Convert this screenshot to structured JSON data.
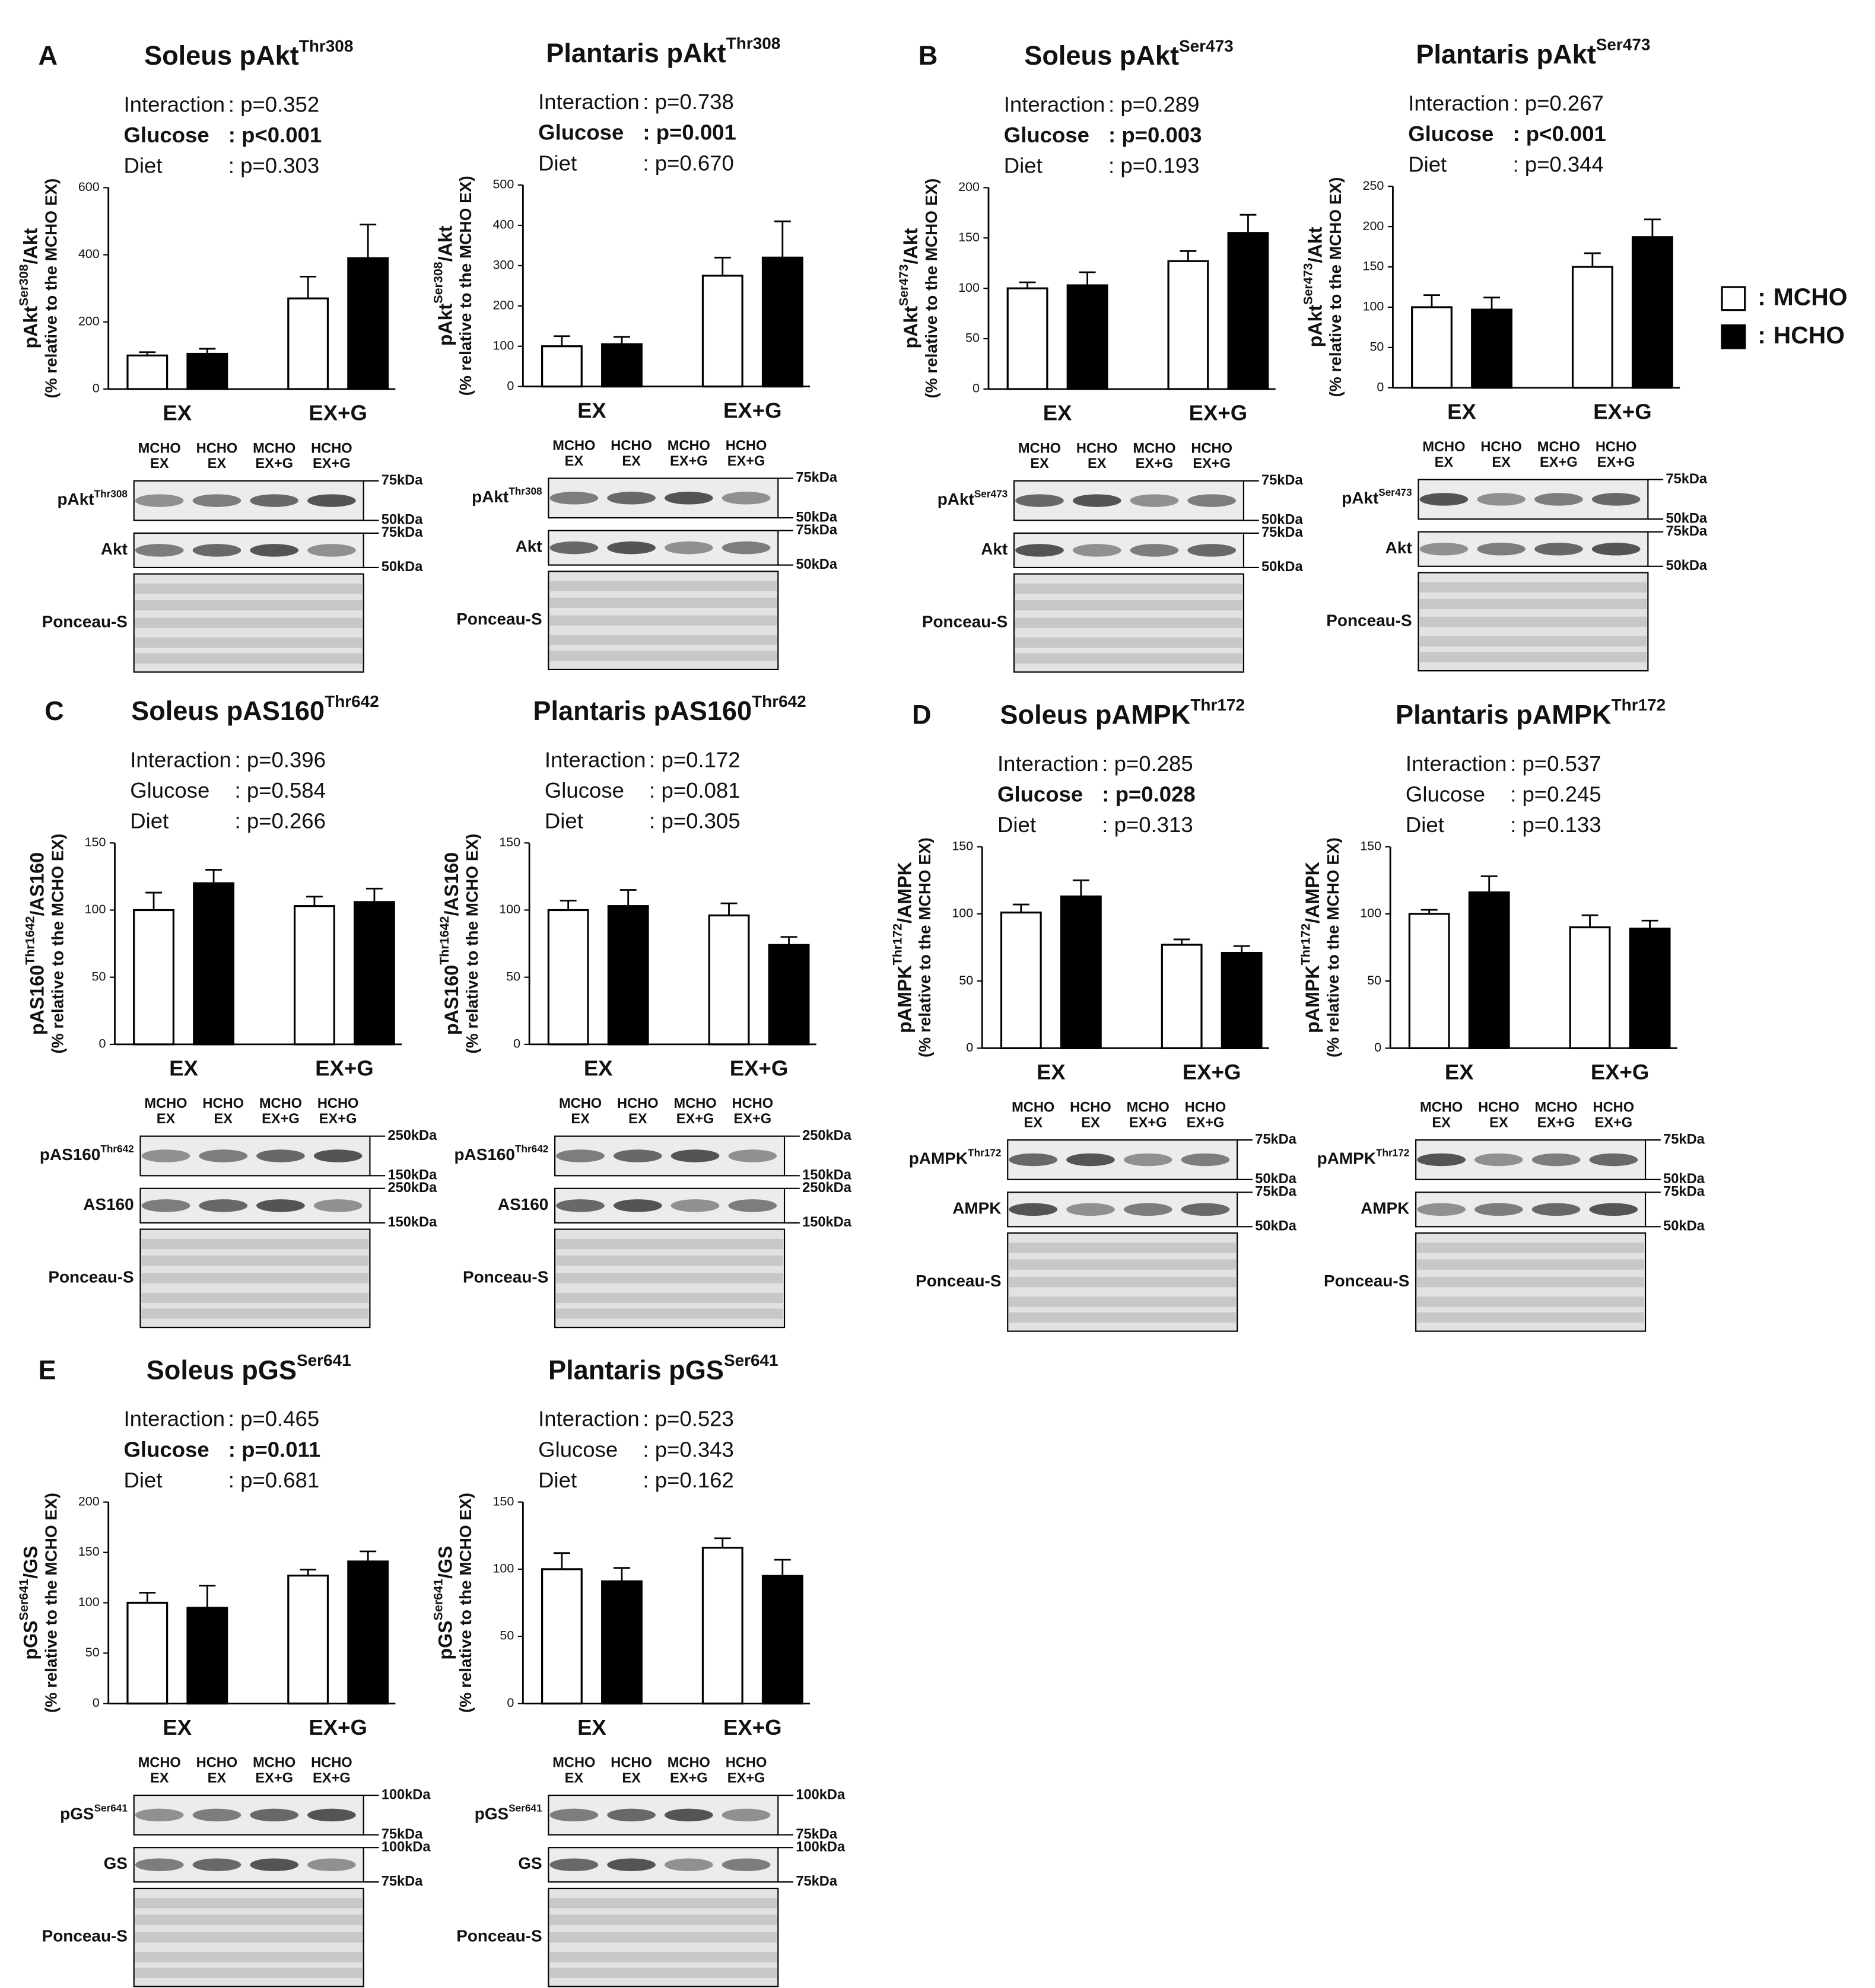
{
  "legend": {
    "separator": ":"
  },
  "chart_data": [
    {
      "type": "bar",
      "panel": "A",
      "title": {
        "text": "Soleus pAkt",
        "sup": "Thr308"
      },
      "stats": [
        {
          "label": "Interaction",
          "value": ": p=0.352"
        },
        {
          "label": "Glucose",
          "value": ": p<0.001",
          "bold": true
        },
        {
          "label": "Diet",
          "value": ": p=0.303"
        }
      ],
      "ylabel": {
        "text": "pAkt",
        "sup": "Ser308",
        "rest": "/Akt",
        "note": "(% relative to the MCHO EX)"
      },
      "categories": [
        "EX",
        "EX+G"
      ],
      "series": [
        {
          "name": "MCHO",
          "color": "#ffffff",
          "values": [
            100,
            270
          ],
          "errors": [
            10,
            65
          ]
        },
        {
          "name": "HCHO",
          "color": "#000000",
          "values": [
            105,
            390
          ],
          "errors": [
            15,
            100
          ]
        }
      ],
      "ylim": [
        0,
        600
      ],
      "yticks": [
        0,
        200,
        400,
        600
      ],
      "lanes": [
        [
          "MCHO",
          "EX"
        ],
        [
          "HCHO",
          "EX"
        ],
        [
          "MCHO",
          "EX+G"
        ],
        [
          "HCHO",
          "EX+G"
        ]
      ],
      "blots": [
        {
          "label": "pAkt",
          "sup": "Thr308",
          "markers": [
            "75kDa",
            "50kDa"
          ]
        },
        {
          "label": "Akt",
          "markers": [
            "75kDa",
            "50kDa"
          ]
        },
        {
          "label": "Ponceau-S"
        }
      ]
    },
    {
      "type": "bar",
      "title": {
        "text": "Plantaris pAkt",
        "sup": "Thr308"
      },
      "stats": [
        {
          "label": "Interaction",
          "value": ": p=0.738"
        },
        {
          "label": "Glucose",
          "value": ": p=0.001",
          "bold": true
        },
        {
          "label": "Diet",
          "value": ": p=0.670"
        }
      ],
      "ylabel": {
        "text": "pAkt",
        "sup": "Ser308",
        "rest": "/Akt",
        "note": "(% relative to the MCHO EX)"
      },
      "categories": [
        "EX",
        "EX+G"
      ],
      "series": [
        {
          "name": "MCHO",
          "color": "#ffffff",
          "values": [
            100,
            275
          ],
          "errors": [
            25,
            45
          ]
        },
        {
          "name": "HCHO",
          "color": "#000000",
          "values": [
            105,
            320
          ],
          "errors": [
            18,
            90
          ]
        }
      ],
      "ylim": [
        0,
        500
      ],
      "yticks": [
        0,
        100,
        200,
        300,
        400,
        500
      ],
      "lanes": [
        [
          "MCHO",
          "EX"
        ],
        [
          "HCHO",
          "EX"
        ],
        [
          "MCHO",
          "EX+G"
        ],
        [
          "HCHO",
          "EX+G"
        ]
      ],
      "blots": [
        {
          "label": "pAkt",
          "sup": "Thr308",
          "markers": [
            "75kDa",
            "50kDa"
          ]
        },
        {
          "label": "Akt",
          "markers": [
            "75kDa",
            "50kDa"
          ]
        },
        {
          "label": "Ponceau-S"
        }
      ]
    },
    {
      "type": "bar",
      "panel": "B",
      "title": {
        "text": "Soleus pAkt",
        "sup": "Ser473"
      },
      "stats": [
        {
          "label": "Interaction",
          "value": ": p=0.289"
        },
        {
          "label": "Glucose",
          "value": ": p=0.003",
          "bold": true
        },
        {
          "label": "Diet",
          "value": ": p=0.193"
        }
      ],
      "ylabel": {
        "text": "pAkt",
        "sup": "Ser473",
        "rest": "/Akt",
        "note": "(% relative to the MCHO EX)"
      },
      "categories": [
        "EX",
        "EX+G"
      ],
      "series": [
        {
          "name": "MCHO",
          "color": "#ffffff",
          "values": [
            100,
            127
          ],
          "errors": [
            6,
            10
          ]
        },
        {
          "name": "HCHO",
          "color": "#000000",
          "values": [
            103,
            155
          ],
          "errors": [
            13,
            18
          ]
        }
      ],
      "ylim": [
        0,
        200
      ],
      "yticks": [
        0,
        50,
        100,
        150,
        200
      ],
      "lanes": [
        [
          "MCHO",
          "EX"
        ],
        [
          "HCHO",
          "EX"
        ],
        [
          "MCHO",
          "EX+G"
        ],
        [
          "HCHO",
          "EX+G"
        ]
      ],
      "blots": [
        {
          "label": "pAkt",
          "sup": "Ser473",
          "markers": [
            "75kDa",
            "50kDa"
          ]
        },
        {
          "label": "Akt",
          "markers": [
            "75kDa",
            "50kDa"
          ]
        },
        {
          "label": "Ponceau-S"
        }
      ]
    },
    {
      "type": "bar",
      "title": {
        "text": "Plantaris pAkt",
        "sup": "Ser473"
      },
      "stats": [
        {
          "label": "Interaction",
          "value": ": p=0.267"
        },
        {
          "label": "Glucose",
          "value": ": p<0.001",
          "bold": true
        },
        {
          "label": "Diet",
          "value": ": p=0.344"
        }
      ],
      "ylabel": {
        "text": "pAkt",
        "sup": "Ser473",
        "rest": "/Akt",
        "note": "(% relative to the MCHO EX)"
      },
      "categories": [
        "EX",
        "EX+G"
      ],
      "series": [
        {
          "name": "MCHO",
          "color": "#ffffff",
          "values": [
            100,
            150
          ],
          "errors": [
            15,
            17
          ]
        },
        {
          "name": "HCHO",
          "color": "#000000",
          "values": [
            97,
            187
          ],
          "errors": [
            15,
            22
          ]
        }
      ],
      "ylim": [
        0,
        250
      ],
      "yticks": [
        0,
        50,
        100,
        150,
        200,
        250
      ],
      "lanes": [
        [
          "MCHO",
          "EX"
        ],
        [
          "HCHO",
          "EX"
        ],
        [
          "MCHO",
          "EX+G"
        ],
        [
          "HCHO",
          "EX+G"
        ]
      ],
      "blots": [
        {
          "label": "pAkt",
          "sup": "Ser473",
          "markers": [
            "75kDa",
            "50kDa"
          ]
        },
        {
          "label": "Akt",
          "markers": [
            "75kDa",
            "50kDa"
          ]
        },
        {
          "label": "Ponceau-S"
        }
      ]
    },
    {
      "type": "bar",
      "panel": "C",
      "title": {
        "text": "Soleus pAS160",
        "sup": "Thr642"
      },
      "stats": [
        {
          "label": "Interaction",
          "value": ": p=0.396"
        },
        {
          "label": "Glucose",
          "value": ": p=0.584"
        },
        {
          "label": "Diet",
          "value": ": p=0.266"
        }
      ],
      "ylabel": {
        "text": "pAS160",
        "sup": "Thr1642",
        "rest": "/AS160",
        "note": "(% relative to the MCHO EX)"
      },
      "categories": [
        "EX",
        "EX+G"
      ],
      "series": [
        {
          "name": "MCHO",
          "color": "#ffffff",
          "values": [
            100,
            103
          ],
          "errors": [
            13,
            7
          ]
        },
        {
          "name": "HCHO",
          "color": "#000000",
          "values": [
            120,
            106
          ],
          "errors": [
            10,
            10
          ]
        }
      ],
      "ylim": [
        0,
        150
      ],
      "yticks": [
        0,
        50,
        100,
        150
      ],
      "lanes": [
        [
          "MCHO",
          "EX"
        ],
        [
          "HCHO",
          "EX"
        ],
        [
          "MCHO",
          "EX+G"
        ],
        [
          "HCHO",
          "EX+G"
        ]
      ],
      "blots": [
        {
          "label": "pAS160",
          "sup": "Thr642",
          "markers": [
            "250kDa",
            "150kDa"
          ]
        },
        {
          "label": "AS160",
          "markers": [
            "250kDa",
            "150kDa"
          ]
        },
        {
          "label": "Ponceau-S"
        }
      ]
    },
    {
      "type": "bar",
      "title": {
        "text": "Plantaris pAS160",
        "sup": "Thr642"
      },
      "stats": [
        {
          "label": "Interaction",
          "value": ": p=0.172"
        },
        {
          "label": "Glucose",
          "value": ": p=0.081"
        },
        {
          "label": "Diet",
          "value": ": p=0.305"
        }
      ],
      "ylabel": {
        "text": "pAS160",
        "sup": "Thr1642",
        "rest": "/AS160",
        "note": "(% relative to the MCHO EX)"
      },
      "categories": [
        "EX",
        "EX+G"
      ],
      "series": [
        {
          "name": "MCHO",
          "color": "#ffffff",
          "values": [
            100,
            96
          ],
          "errors": [
            7,
            9
          ]
        },
        {
          "name": "HCHO",
          "color": "#000000",
          "values": [
            103,
            74
          ],
          "errors": [
            12,
            6
          ]
        }
      ],
      "ylim": [
        0,
        150
      ],
      "yticks": [
        0,
        50,
        100,
        150
      ],
      "lanes": [
        [
          "MCHO",
          "EX"
        ],
        [
          "HCHO",
          "EX"
        ],
        [
          "MCHO",
          "EX+G"
        ],
        [
          "HCHO",
          "EX+G"
        ]
      ],
      "blots": [
        {
          "label": "pAS160",
          "sup": "Thr642",
          "markers": [
            "250kDa",
            "150kDa"
          ]
        },
        {
          "label": "AS160",
          "markers": [
            "250kDa",
            "150kDa"
          ]
        },
        {
          "label": "Ponceau-S"
        }
      ]
    },
    {
      "type": "bar",
      "panel": "D",
      "title": {
        "text": "Soleus pAMPK",
        "sup": "Thr172"
      },
      "stats": [
        {
          "label": "Interaction",
          "value": ": p=0.285"
        },
        {
          "label": "Glucose",
          "value": ": p=0.028",
          "bold": true
        },
        {
          "label": "Diet",
          "value": ": p=0.313"
        }
      ],
      "ylabel": {
        "text": "pAMPK",
        "sup": "Thr172",
        "rest": "/AMPK",
        "note": "(% relative to the MCHO EX)"
      },
      "categories": [
        "EX",
        "EX+G"
      ],
      "series": [
        {
          "name": "MCHO",
          "color": "#ffffff",
          "values": [
            101,
            77
          ],
          "errors": [
            6,
            4
          ]
        },
        {
          "name": "HCHO",
          "color": "#000000",
          "values": [
            113,
            71
          ],
          "errors": [
            12,
            5
          ]
        }
      ],
      "ylim": [
        0,
        150
      ],
      "yticks": [
        0,
        50,
        100,
        150
      ],
      "lanes": [
        [
          "MCHO",
          "EX"
        ],
        [
          "HCHO",
          "EX"
        ],
        [
          "MCHO",
          "EX+G"
        ],
        [
          "HCHO",
          "EX+G"
        ]
      ],
      "blots": [
        {
          "label": "pAMPK",
          "sup": "Thr172",
          "markers": [
            "75kDa",
            "50kDa"
          ]
        },
        {
          "label": "AMPK",
          "markers": [
            "75kDa",
            "50kDa"
          ]
        },
        {
          "label": "Ponceau-S"
        }
      ]
    },
    {
      "type": "bar",
      "title": {
        "text": "Plantaris pAMPK",
        "sup": "Thr172"
      },
      "stats": [
        {
          "label": "Interaction",
          "value": ": p=0.537"
        },
        {
          "label": "Glucose",
          "value": ": p=0.245"
        },
        {
          "label": "Diet",
          "value": ": p=0.133"
        }
      ],
      "ylabel": {
        "text": "pAMPK",
        "sup": "Thr172",
        "rest": "/AMPK",
        "note": "(% relative to the MCHO EX)"
      },
      "categories": [
        "EX",
        "EX+G"
      ],
      "series": [
        {
          "name": "MCHO",
          "color": "#ffffff",
          "values": [
            100,
            90
          ],
          "errors": [
            3,
            9
          ]
        },
        {
          "name": "HCHO",
          "color": "#000000",
          "values": [
            116,
            89
          ],
          "errors": [
            12,
            6
          ]
        }
      ],
      "ylim": [
        0,
        150
      ],
      "yticks": [
        0,
        50,
        100,
        150
      ],
      "lanes": [
        [
          "MCHO",
          "EX"
        ],
        [
          "HCHO",
          "EX"
        ],
        [
          "MCHO",
          "EX+G"
        ],
        [
          "HCHO",
          "EX+G"
        ]
      ],
      "blots": [
        {
          "label": "pAMPK",
          "sup": "Thr172",
          "markers": [
            "75kDa",
            "50kDa"
          ]
        },
        {
          "label": "AMPK",
          "markers": [
            "75kDa",
            "50kDa"
          ]
        },
        {
          "label": "Ponceau-S"
        }
      ]
    },
    {
      "type": "bar",
      "panel": "E",
      "title": {
        "text": "Soleus pGS",
        "sup": "Ser641"
      },
      "stats": [
        {
          "label": "Interaction",
          "value": ": p=0.465"
        },
        {
          "label": "Glucose",
          "value": ": p=0.011",
          "bold": true
        },
        {
          "label": "Diet",
          "value": ": p=0.681"
        }
      ],
      "ylabel": {
        "text": "pGS",
        "sup": "Ser641",
        "rest": "/GS",
        "note": "(% relative to the MCHO EX)"
      },
      "categories": [
        "EX",
        "EX+G"
      ],
      "series": [
        {
          "name": "MCHO",
          "color": "#ffffff",
          "values": [
            100,
            127
          ],
          "errors": [
            10,
            6
          ]
        },
        {
          "name": "HCHO",
          "color": "#000000",
          "values": [
            95,
            141
          ],
          "errors": [
            22,
            10
          ]
        }
      ],
      "ylim": [
        0,
        200
      ],
      "yticks": [
        0,
        50,
        100,
        150,
        200
      ],
      "lanes": [
        [
          "MCHO",
          "EX"
        ],
        [
          "HCHO",
          "EX"
        ],
        [
          "MCHO",
          "EX+G"
        ],
        [
          "HCHO",
          "EX+G"
        ]
      ],
      "blots": [
        {
          "label": "pGS",
          "sup": "Ser641",
          "markers": [
            "100kDa",
            "75kDa"
          ]
        },
        {
          "label": "GS",
          "markers": [
            "100kDa",
            "75kDa"
          ]
        },
        {
          "label": "Ponceau-S"
        }
      ]
    },
    {
      "type": "bar",
      "title": {
        "text": "Plantaris pGS",
        "sup": "Ser641"
      },
      "stats": [
        {
          "label": "Interaction",
          "value": ": p=0.523"
        },
        {
          "label": "Glucose",
          "value": ": p=0.343"
        },
        {
          "label": "Diet",
          "value": ": p=0.162"
        }
      ],
      "ylabel": {
        "text": "pGS",
        "sup": "Ser641",
        "rest": "/GS",
        "note": "(% relative to the MCHO EX)"
      },
      "categories": [
        "EX",
        "EX+G"
      ],
      "series": [
        {
          "name": "MCHO",
          "color": "#ffffff",
          "values": [
            100,
            116
          ],
          "errors": [
            12,
            7
          ]
        },
        {
          "name": "HCHO",
          "color": "#000000",
          "values": [
            91,
            95
          ],
          "errors": [
            10,
            12
          ]
        }
      ],
      "ylim": [
        0,
        150
      ],
      "yticks": [
        0,
        50,
        100,
        150
      ],
      "lanes": [
        [
          "MCHO",
          "EX"
        ],
        [
          "HCHO",
          "EX"
        ],
        [
          "MCHO",
          "EX+G"
        ],
        [
          "HCHO",
          "EX+G"
        ]
      ],
      "blots": [
        {
          "label": "pGS",
          "sup": "Ser641",
          "markers": [
            "100kDa",
            "75kDa"
          ]
        },
        {
          "label": "GS",
          "markers": [
            "100kDa",
            "75kDa"
          ]
        },
        {
          "label": "Ponceau-S"
        }
      ]
    }
  ]
}
